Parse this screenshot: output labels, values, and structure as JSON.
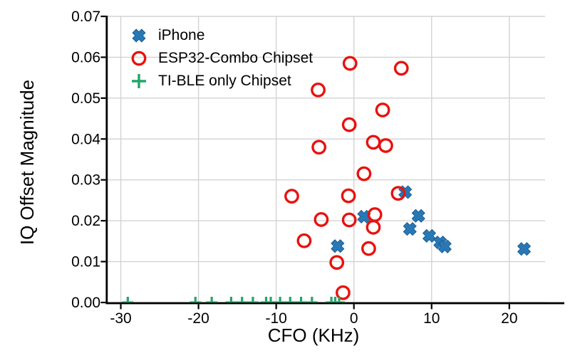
{
  "chart_data": {
    "type": "scatter",
    "title": "",
    "xlabel": "CFO (KHz)",
    "ylabel": "IQ Offset Magnitude",
    "xlim": [
      -31.7,
      24.6
    ],
    "ylim": [
      0,
      0.07
    ],
    "xticks": [
      -30,
      -20,
      -10,
      0,
      10,
      20
    ],
    "xtick_labels": [
      "-30",
      "-20",
      "-10",
      "0",
      "10",
      "20"
    ],
    "yticks": [
      0,
      0.01,
      0.02,
      0.03,
      0.04,
      0.05,
      0.06,
      0.07
    ],
    "ytick_labels": [
      "0.00",
      "0.01",
      "0.02",
      "0.03",
      "0.04",
      "0.05",
      "0.06",
      "0.07"
    ],
    "grid": true,
    "grid_color": "#d3d3d3",
    "axis_color": "#000000",
    "background_color": "#ffffff",
    "legend_position": "upper-left-inside",
    "series": [
      {
        "name": "iPhone",
        "marker": "X",
        "color": "#2878b5",
        "edge_color": "#1c5f93",
        "points": [
          [
            -2.1,
            0.0138
          ],
          [
            1.3,
            0.021
          ],
          [
            6.6,
            0.027
          ],
          [
            8.3,
            0.0212
          ],
          [
            7.2,
            0.018
          ],
          [
            9.7,
            0.0163
          ],
          [
            11.1,
            0.0147
          ],
          [
            11.7,
            0.0137
          ],
          [
            21.9,
            0.0131
          ]
        ]
      },
      {
        "name": "ESP32-Combo Chipset",
        "marker": "circle",
        "color": "#e8120e",
        "points": [
          [
            -0.5,
            0.0585
          ],
          [
            6.1,
            0.0573
          ],
          [
            -4.6,
            0.052
          ],
          [
            3.7,
            0.0471
          ],
          [
            -0.6,
            0.0435
          ],
          [
            2.5,
            0.0392
          ],
          [
            4.1,
            0.0384
          ],
          [
            -4.5,
            0.038
          ],
          [
            1.3,
            0.0315
          ],
          [
            -8.0,
            0.026
          ],
          [
            -0.7,
            0.0261
          ],
          [
            5.7,
            0.0267
          ],
          [
            -4.2,
            0.0203
          ],
          [
            -0.6,
            0.0202
          ],
          [
            2.7,
            0.0215
          ],
          [
            2.5,
            0.0184
          ],
          [
            -6.4,
            0.0151
          ],
          [
            1.9,
            0.0132
          ],
          [
            -2.2,
            0.0098
          ],
          [
            -1.4,
            0.0024
          ]
        ]
      },
      {
        "name": "TI-BLE only Chipset",
        "marker": "plus",
        "color": "#22a56c",
        "points": [
          [
            -29.1,
            0
          ],
          [
            -20.4,
            0
          ],
          [
            -18.3,
            0
          ],
          [
            -15.8,
            0
          ],
          [
            -14.4,
            0
          ],
          [
            -13.0,
            0
          ],
          [
            -11.3,
            0
          ],
          [
            -10.7,
            0
          ],
          [
            -9.5,
            0
          ],
          [
            -8.2,
            0
          ],
          [
            -6.8,
            0
          ],
          [
            -5.4,
            0
          ],
          [
            -2.9,
            0
          ],
          [
            -2.4,
            0
          ],
          [
            -1.9,
            0
          ]
        ]
      }
    ]
  }
}
